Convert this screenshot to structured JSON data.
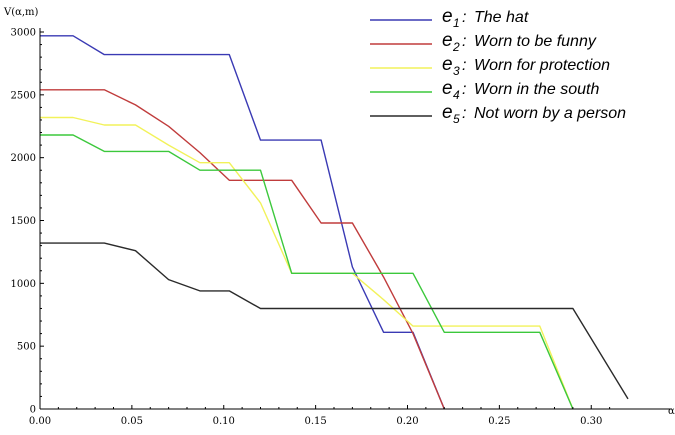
{
  "chart_data": {
    "type": "line",
    "ylabel": "V(α,m)",
    "xlabel": "α",
    "xlim": [
      0,
      0.32
    ],
    "ylim": [
      0,
      3000
    ],
    "x_ticks": [
      "0.00",
      "0.05",
      "0.10",
      "0.15",
      "0.20",
      "0.25",
      "0.30"
    ],
    "x_tick_values": [
      0,
      0.05,
      0.1,
      0.15,
      0.2,
      0.25,
      0.3
    ],
    "y_ticks": [
      "0",
      "500",
      "1000",
      "1500",
      "2000",
      "2500",
      "3000"
    ],
    "y_tick_values": [
      0,
      500,
      1000,
      1500,
      2000,
      2500,
      3000
    ],
    "grid": false,
    "legend_position": "top-right",
    "series": [
      {
        "symbol": "e",
        "subscript": "1",
        "name": "The hat",
        "color": "#3a3ab4",
        "points": [
          [
            0,
            2970
          ],
          [
            0.018,
            2970
          ],
          [
            0.035,
            2820
          ],
          [
            0.07,
            2820
          ],
          [
            0.103,
            2820
          ],
          [
            0.12,
            2140
          ],
          [
            0.153,
            2140
          ],
          [
            0.17,
            1130
          ],
          [
            0.187,
            610
          ],
          [
            0.203,
            610
          ],
          [
            0.22,
            0
          ]
        ]
      },
      {
        "symbol": "e",
        "subscript": "2",
        "name": "Worn to be funny",
        "color": "#c03c3c",
        "points": [
          [
            0,
            2540
          ],
          [
            0.035,
            2540
          ],
          [
            0.052,
            2420
          ],
          [
            0.07,
            2250
          ],
          [
            0.087,
            2040
          ],
          [
            0.103,
            1820
          ],
          [
            0.137,
            1820
          ],
          [
            0.153,
            1480
          ],
          [
            0.17,
            1480
          ],
          [
            0.187,
            1050
          ],
          [
            0.203,
            600
          ],
          [
            0.22,
            0
          ]
        ]
      },
      {
        "symbol": "e",
        "subscript": "3",
        "name": "Worn for protection",
        "color": "#f2f25a",
        "points": [
          [
            0,
            2320
          ],
          [
            0.018,
            2320
          ],
          [
            0.035,
            2260
          ],
          [
            0.052,
            2260
          ],
          [
            0.07,
            2100
          ],
          [
            0.087,
            1960
          ],
          [
            0.103,
            1960
          ],
          [
            0.12,
            1640
          ],
          [
            0.137,
            1080
          ],
          [
            0.17,
            1080
          ],
          [
            0.187,
            870
          ],
          [
            0.203,
            660
          ],
          [
            0.272,
            660
          ],
          [
            0.29,
            0
          ]
        ]
      },
      {
        "symbol": "e",
        "subscript": "4",
        "name": "Worn in the south",
        "color": "#3cc83c",
        "points": [
          [
            0,
            2180
          ],
          [
            0.018,
            2180
          ],
          [
            0.035,
            2050
          ],
          [
            0.07,
            2050
          ],
          [
            0.087,
            1900
          ],
          [
            0.12,
            1900
          ],
          [
            0.137,
            1080
          ],
          [
            0.203,
            1080
          ],
          [
            0.22,
            610
          ],
          [
            0.272,
            610
          ],
          [
            0.29,
            0
          ]
        ]
      },
      {
        "symbol": "e",
        "subscript": "5",
        "name": "Not worn by a person",
        "color": "#2a2a2a",
        "points": [
          [
            0,
            1320
          ],
          [
            0.035,
            1320
          ],
          [
            0.052,
            1260
          ],
          [
            0.07,
            1030
          ],
          [
            0.087,
            940
          ],
          [
            0.103,
            940
          ],
          [
            0.12,
            800
          ],
          [
            0.29,
            800
          ],
          [
            0.32,
            80
          ]
        ]
      }
    ]
  }
}
